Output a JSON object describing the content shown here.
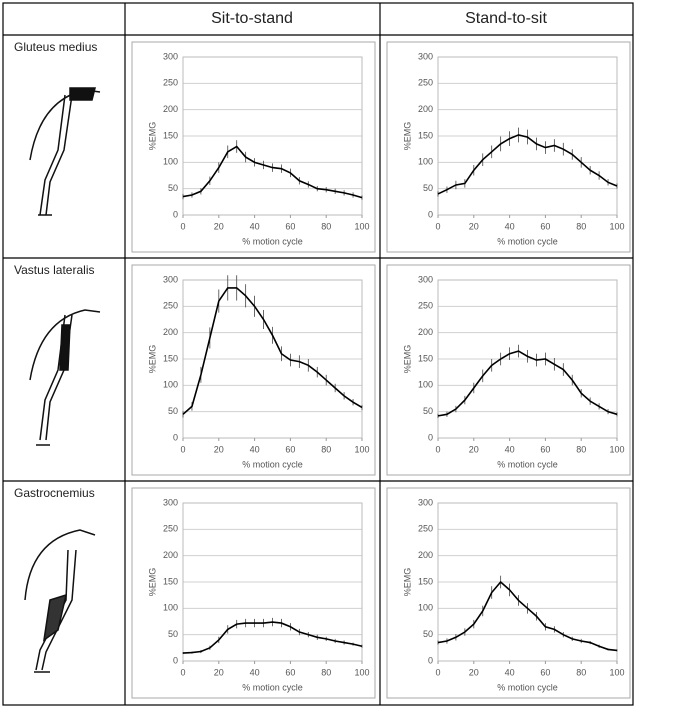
{
  "table": {
    "columns": [
      "Sit-to-stand",
      "Stand-to-sit"
    ],
    "rows": [
      "Gluteus medius",
      "Vastus lateralis",
      "Gastrocnemius"
    ]
  },
  "chart_data": [
    {
      "type": "line",
      "xlabel": "% motion cycle",
      "ylabel": "%EMG",
      "color": "#000000",
      "grid": true,
      "xlim": [
        0,
        100
      ],
      "xticks": [
        0,
        20,
        40,
        60,
        80,
        100
      ],
      "ylim": [
        0,
        300
      ],
      "yticks": [
        0,
        50,
        100,
        150,
        200,
        250,
        300
      ],
      "x": [
        0,
        5,
        10,
        15,
        20,
        25,
        30,
        35,
        40,
        45,
        50,
        55,
        60,
        65,
        70,
        75,
        80,
        85,
        90,
        95,
        100
      ],
      "values": [
        35,
        38,
        45,
        65,
        90,
        120,
        130,
        110,
        100,
        95,
        90,
        88,
        80,
        65,
        58,
        50,
        48,
        45,
        42,
        38,
        33
      ],
      "errors": [
        5,
        5,
        6,
        8,
        10,
        12,
        12,
        10,
        8,
        8,
        8,
        8,
        8,
        7,
        6,
        5,
        5,
        5,
        5,
        5,
        4
      ]
    },
    {
      "type": "line",
      "xlabel": "% motion cycle",
      "ylabel": "%EMG",
      "color": "#000000",
      "grid": true,
      "xlim": [
        0,
        100
      ],
      "xticks": [
        0,
        20,
        40,
        60,
        80,
        100
      ],
      "ylim": [
        0,
        300
      ],
      "yticks": [
        0,
        50,
        100,
        150,
        200,
        250,
        300
      ],
      "x": [
        0,
        5,
        10,
        15,
        20,
        25,
        30,
        35,
        40,
        45,
        50,
        55,
        60,
        65,
        70,
        75,
        80,
        85,
        90,
        95,
        100
      ],
      "values": [
        40,
        48,
        57,
        60,
        85,
        105,
        120,
        135,
        145,
        152,
        148,
        135,
        128,
        132,
        125,
        115,
        100,
        85,
        75,
        62,
        55
      ],
      "errors": [
        5,
        6,
        8,
        8,
        10,
        12,
        12,
        14,
        14,
        14,
        14,
        12,
        12,
        12,
        12,
        10,
        10,
        8,
        8,
        6,
        5
      ]
    },
    {
      "type": "line",
      "xlabel": "% motion cycle",
      "ylabel": "%EMG",
      "color": "#000000",
      "grid": true,
      "xlim": [
        0,
        100
      ],
      "xticks": [
        0,
        20,
        40,
        60,
        80,
        100
      ],
      "ylim": [
        0,
        300
      ],
      "yticks": [
        0,
        50,
        100,
        150,
        200,
        250,
        300
      ],
      "x": [
        0,
        5,
        10,
        15,
        20,
        25,
        30,
        35,
        40,
        45,
        50,
        55,
        60,
        65,
        70,
        75,
        80,
        85,
        90,
        95,
        100
      ],
      "values": [
        45,
        60,
        120,
        190,
        260,
        285,
        285,
        270,
        250,
        225,
        195,
        160,
        148,
        145,
        138,
        125,
        110,
        95,
        80,
        68,
        58
      ],
      "errors": [
        6,
        8,
        15,
        20,
        22,
        24,
        24,
        22,
        20,
        18,
        16,
        14,
        12,
        12,
        12,
        10,
        10,
        8,
        7,
        6,
        5
      ]
    },
    {
      "type": "line",
      "xlabel": "% motion cycle",
      "ylabel": "%EMG",
      "color": "#000000",
      "grid": true,
      "xlim": [
        0,
        100
      ],
      "xticks": [
        0,
        20,
        40,
        60,
        80,
        100
      ],
      "ylim": [
        0,
        300
      ],
      "yticks": [
        0,
        50,
        100,
        150,
        200,
        250,
        300
      ],
      "x": [
        0,
        5,
        10,
        15,
        20,
        25,
        30,
        35,
        40,
        45,
        50,
        55,
        60,
        65,
        70,
        75,
        80,
        85,
        90,
        95,
        100
      ],
      "values": [
        42,
        45,
        55,
        72,
        95,
        118,
        138,
        150,
        160,
        165,
        155,
        148,
        150,
        140,
        130,
        110,
        85,
        70,
        60,
        50,
        45
      ],
      "errors": [
        4,
        5,
        6,
        8,
        10,
        12,
        12,
        12,
        12,
        12,
        12,
        12,
        12,
        12,
        12,
        10,
        8,
        7,
        6,
        5,
        4
      ]
    },
    {
      "type": "line",
      "xlabel": "% motion cycle",
      "ylabel": "%EMG",
      "color": "#000000",
      "grid": true,
      "xlim": [
        0,
        100
      ],
      "xticks": [
        0,
        20,
        40,
        60,
        80,
        100
      ],
      "ylim": [
        0,
        300
      ],
      "yticks": [
        0,
        50,
        100,
        150,
        200,
        250,
        300
      ],
      "x": [
        0,
        5,
        10,
        15,
        20,
        25,
        30,
        35,
        40,
        45,
        50,
        55,
        60,
        65,
        70,
        75,
        80,
        85,
        90,
        95,
        100
      ],
      "values": [
        15,
        16,
        18,
        25,
        40,
        60,
        70,
        72,
        72,
        72,
        74,
        72,
        65,
        55,
        50,
        45,
        42,
        38,
        35,
        32,
        28
      ],
      "errors": [
        2,
        2,
        3,
        4,
        6,
        8,
        8,
        8,
        8,
        8,
        8,
        8,
        7,
        6,
        5,
        5,
        4,
        4,
        4,
        3,
        3
      ]
    },
    {
      "type": "line",
      "xlabel": "% motion cycle",
      "ylabel": "%EMG",
      "color": "#000000",
      "grid": true,
      "xlim": [
        0,
        100
      ],
      "xticks": [
        0,
        20,
        40,
        60,
        80,
        100
      ],
      "ylim": [
        0,
        300
      ],
      "yticks": [
        0,
        50,
        100,
        150,
        200,
        250,
        300
      ],
      "x": [
        0,
        5,
        10,
        15,
        20,
        25,
        30,
        35,
        40,
        45,
        50,
        55,
        60,
        65,
        70,
        75,
        80,
        85,
        90,
        95,
        100
      ],
      "values": [
        35,
        38,
        45,
        55,
        70,
        95,
        130,
        150,
        135,
        115,
        100,
        85,
        65,
        60,
        50,
        42,
        38,
        35,
        28,
        22,
        20
      ],
      "errors": [
        4,
        5,
        6,
        7,
        8,
        10,
        12,
        12,
        12,
        10,
        10,
        8,
        7,
        6,
        5,
        4,
        4,
        3,
        3,
        2,
        2
      ]
    }
  ]
}
